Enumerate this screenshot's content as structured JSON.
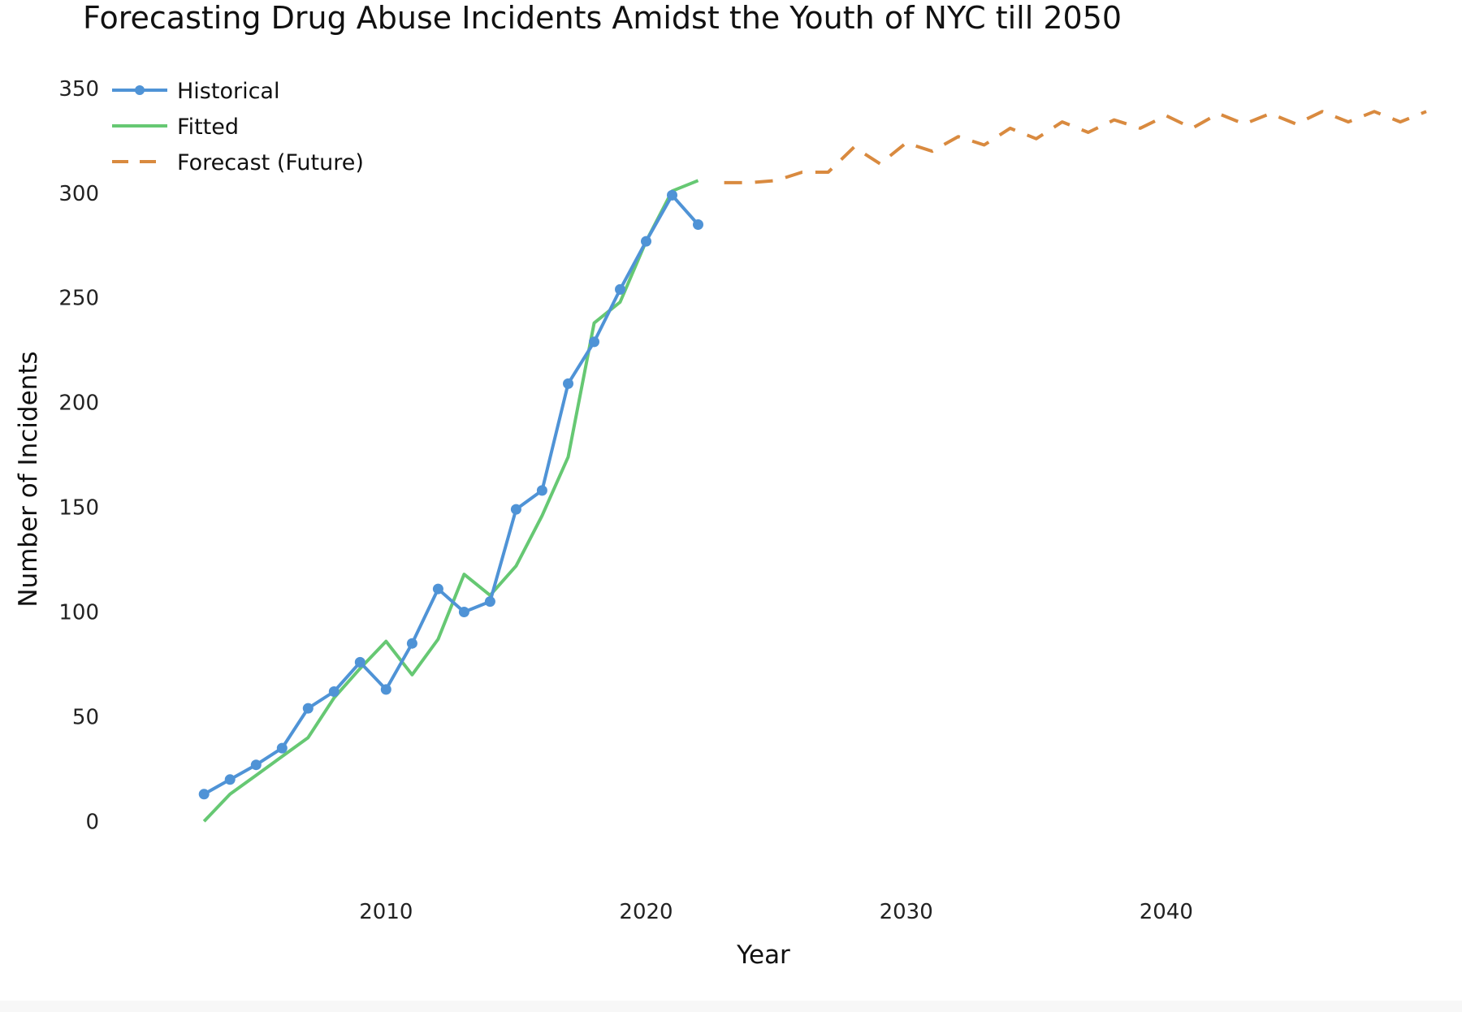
{
  "chart_data": {
    "type": "line",
    "title": "Forecasting Drug Abuse Incidents Amidst the Youth of NYC till 2050",
    "xlabel": "Year",
    "ylabel": "Number of Incidents",
    "xlim": [
      2001.9,
      2050
    ],
    "ylim": [
      -15,
      355
    ],
    "x_ticks": [
      2010,
      2020,
      2030,
      2040
    ],
    "y_ticks": [
      0,
      50,
      100,
      150,
      200,
      250,
      300,
      350
    ],
    "grid": false,
    "legend": "top-left",
    "series": [
      {
        "name": "Historical",
        "style": "line+markers",
        "color": "#4f93d6",
        "x": [
          2003,
          2004,
          2005,
          2006,
          2007,
          2008,
          2009,
          2010,
          2011,
          2012,
          2013,
          2014,
          2015,
          2016,
          2017,
          2018,
          2019,
          2020,
          2021,
          2022
        ],
        "y": [
          13,
          20,
          27,
          35,
          54,
          62,
          76,
          63,
          85,
          111,
          100,
          105,
          149,
          158,
          209,
          229,
          254,
          277,
          299,
          285
        ]
      },
      {
        "name": "Fitted",
        "style": "line",
        "color": "#66c873",
        "x": [
          2003,
          2004,
          2005,
          2006,
          2007,
          2008,
          2009,
          2010,
          2011,
          2012,
          2013,
          2014,
          2015,
          2016,
          2017,
          2018,
          2019,
          2020,
          2021,
          2022
        ],
        "y": [
          0,
          13,
          22,
          31,
          40,
          59,
          73,
          86,
          70,
          87,
          118,
          108,
          122,
          146,
          174,
          238,
          248,
          277,
          301,
          306
        ]
      },
      {
        "name": "Forecast (Future)",
        "style": "dashed",
        "color": "#d98a3f",
        "x": [
          2023,
          2024,
          2025,
          2026,
          2027,
          2028,
          2029,
          2030,
          2031,
          2032,
          2033,
          2034,
          2035,
          2036,
          2037,
          2038,
          2039,
          2040,
          2041,
          2042,
          2043,
          2044,
          2045,
          2046,
          2047,
          2048,
          2049,
          2050
        ],
        "y": [
          305,
          305,
          306,
          310,
          310,
          322,
          314,
          324,
          320,
          327,
          323,
          331,
          326,
          334,
          329,
          335,
          331,
          337,
          331,
          338,
          333,
          338,
          333,
          339,
          334,
          339,
          334,
          339
        ]
      }
    ]
  }
}
